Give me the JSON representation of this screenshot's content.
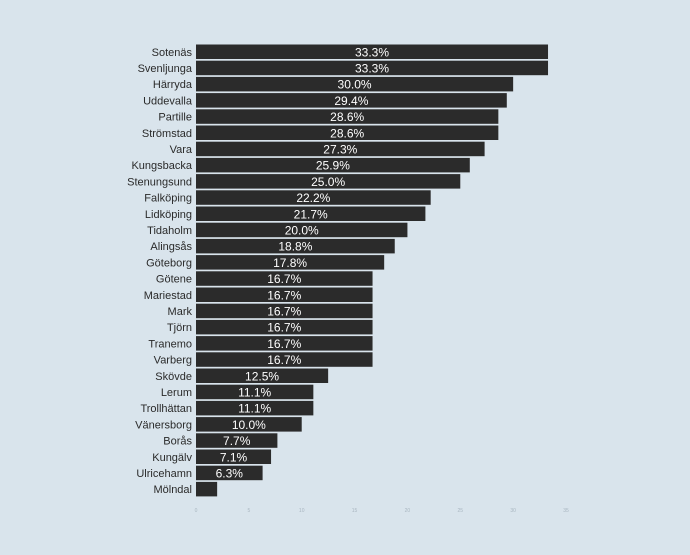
{
  "chart_data": {
    "type": "bar",
    "orientation": "horizontal",
    "title": "",
    "xlabel": "",
    "ylabel": "",
    "categories": [
      "Sotenäs",
      "Svenljunga",
      "Härryda",
      "Uddevalla",
      "Partille",
      "Strömstad",
      "Vara",
      "Kungsbacka",
      "Stenungsund",
      "Falköping",
      "Lidköping",
      "Tidaholm",
      "Alingsås",
      "Göteborg",
      "Götene",
      "Mariestad",
      "Mark",
      "Tjörn",
      "Tranemo",
      "Varberg",
      "Skövde",
      "Lerum",
      "Trollhättan",
      "Vänersborg",
      "Borås",
      "Kungälv",
      "Ulricehamn",
      "Mölndal"
    ],
    "values": [
      33.3,
      33.3,
      30.0,
      29.4,
      28.6,
      28.6,
      27.3,
      25.9,
      25.0,
      22.2,
      21.7,
      20.0,
      18.8,
      17.8,
      16.7,
      16.7,
      16.7,
      16.7,
      16.7,
      16.7,
      12.5,
      11.1,
      11.1,
      10.0,
      7.7,
      7.1,
      6.3,
      2.0
    ],
    "value_labels": [
      "33.3%",
      "33.3%",
      "30.0%",
      "29.4%",
      "28.6%",
      "28.6%",
      "27.3%",
      "25.9%",
      "25.0%",
      "22.2%",
      "21.7%",
      "20.0%",
      "18.8%",
      "17.8%",
      "16.7%",
      "16.7%",
      "16.7%",
      "16.7%",
      "16.7%",
      "16.7%",
      "12.5%",
      "11.1%",
      "11.1%",
      "10.0%",
      "7.7%",
      "7.1%",
      "6.3%",
      ""
    ],
    "x_ticks": [
      "0",
      "5",
      "10",
      "15",
      "20",
      "25",
      "30",
      "35"
    ],
    "xlim": [
      0,
      35
    ],
    "grid": false,
    "legend": "none",
    "bar_color": "#2b2b2b",
    "background_color": "#d9e4ec"
  }
}
